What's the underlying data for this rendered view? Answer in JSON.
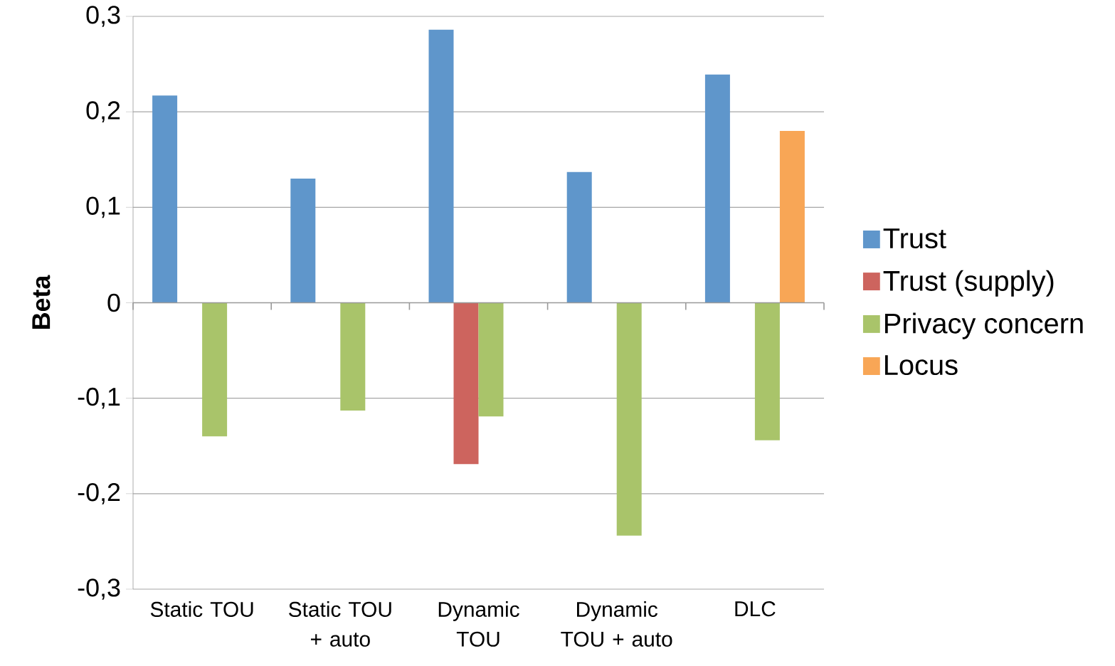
{
  "chart_data": {
    "type": "bar",
    "ylabel": "Beta",
    "categories": [
      "Static TOU",
      "Static TOU + auto",
      "Dynamic TOU",
      "Dynamic TOU + auto",
      "DLC"
    ],
    "series": [
      {
        "name": "Trust",
        "color": "#5f96cb",
        "values": [
          0.217,
          0.13,
          0.286,
          0.137,
          0.239
        ]
      },
      {
        "name": "Trust (supply)",
        "color": "#cd645e",
        "values": [
          null,
          null,
          -0.169,
          null,
          null
        ]
      },
      {
        "name": "Privacy concern",
        "color": "#a9c46a",
        "values": [
          -0.14,
          -0.113,
          -0.119,
          -0.244,
          -0.144
        ]
      },
      {
        "name": "Locus",
        "color": "#f8a656",
        "values": [
          null,
          null,
          null,
          null,
          0.18
        ]
      }
    ],
    "ylim": [
      -0.3,
      0.3
    ],
    "yticks": [
      {
        "value": -0.3,
        "label": "-0,3"
      },
      {
        "value": -0.2,
        "label": "-0,2"
      },
      {
        "value": -0.1,
        "label": "-0,1"
      },
      0,
      {
        "value": 0.1,
        "label": "0,1"
      },
      {
        "value": 0.2,
        "label": "0,2"
      },
      {
        "value": 0.3,
        "label": "0,3"
      }
    ],
    "grid": "y",
    "legend": "right"
  }
}
